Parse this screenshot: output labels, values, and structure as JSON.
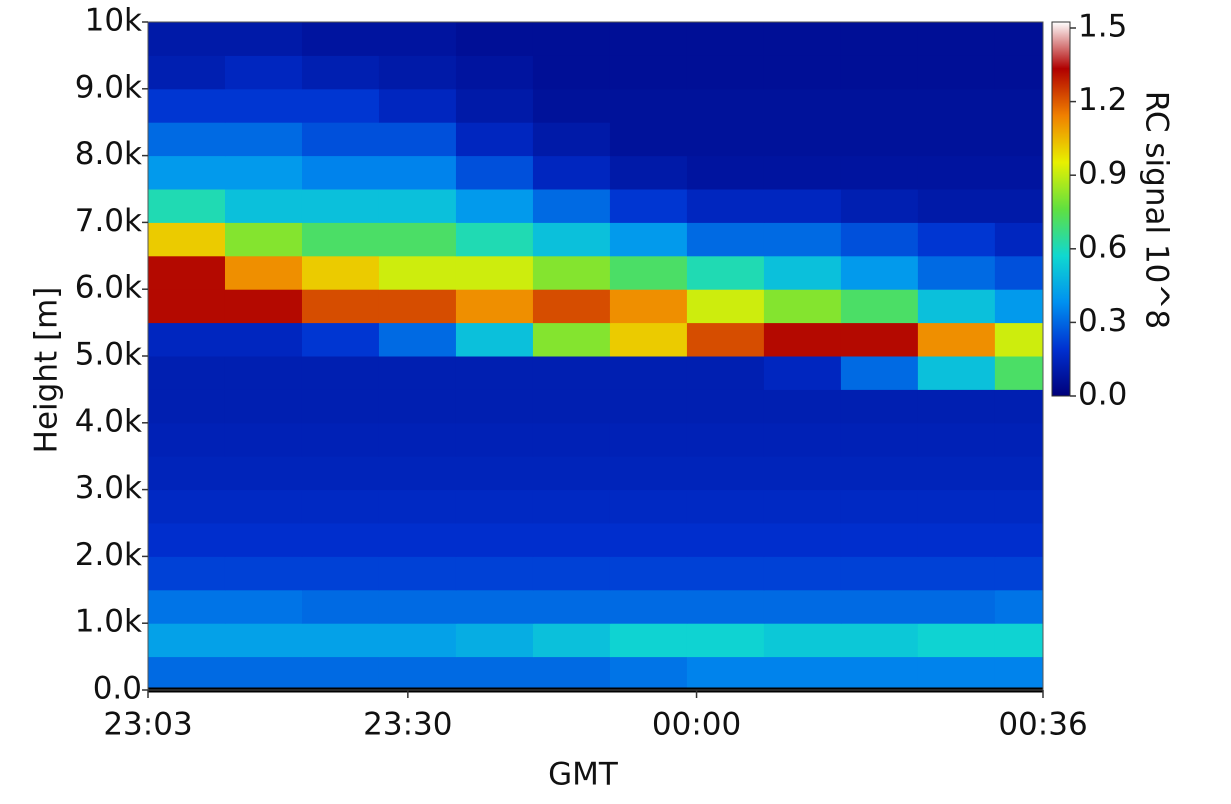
{
  "chart_data": {
    "type": "heatmap",
    "xlabel": "GMT",
    "ylabel": "Height [m]",
    "colorbar_label": "RC signal 10^8",
    "xlim": [
      1383,
      1476
    ],
    "xticks": [
      {
        "value": 1383,
        "label": "23:03"
      },
      {
        "value": 1410,
        "label": "23:30"
      },
      {
        "value": 1440,
        "label": "00:00"
      },
      {
        "value": 1476,
        "label": "00:36"
      }
    ],
    "ylim": [
      0,
      10000
    ],
    "yticks": [
      {
        "value": 0,
        "label": "0.0"
      },
      {
        "value": 1000,
        "label": "1.0k"
      },
      {
        "value": 2000,
        "label": "2.0k"
      },
      {
        "value": 3000,
        "label": "3.0k"
      },
      {
        "value": 4000,
        "label": "4.0k"
      },
      {
        "value": 5000,
        "label": "5.0k"
      },
      {
        "value": 6000,
        "label": "6.0k"
      },
      {
        "value": 7000,
        "label": "7.0k"
      },
      {
        "value": 8000,
        "label": "8.0k"
      },
      {
        "value": 9000,
        "label": "9.0k"
      },
      {
        "value": 10000,
        "label": "10k"
      }
    ],
    "clim": [
      0,
      1.5
    ],
    "cticks": [
      {
        "value": 0,
        "label": "0.0"
      },
      0.3,
      0.6,
      0.9,
      1.2,
      1.5
    ],
    "colorscale": [
      "#00007a",
      "#0030d0",
      "#0090f0",
      "#10d8d0",
      "#60e040",
      "#e8f000",
      "#f08000",
      "#b00000",
      "#ffffff"
    ],
    "xbins": [
      1383,
      1391,
      1399,
      1407,
      1415,
      1423,
      1431,
      1439,
      1447,
      1455,
      1463,
      1471,
      1476
    ],
    "ybins": [
      0,
      500,
      1000,
      1500,
      2000,
      2500,
      3000,
      3500,
      4000,
      4500,
      5000,
      5500,
      6000,
      6500,
      7000,
      7500,
      8000,
      8500,
      9000,
      9500,
      10000
    ],
    "z": [
      [
        0.3,
        0.3,
        0.3,
        0.3,
        0.3,
        0.3,
        0.32,
        0.35,
        0.35,
        0.35,
        0.35,
        0.35
      ],
      [
        0.42,
        0.42,
        0.42,
        0.42,
        0.45,
        0.5,
        0.55,
        0.55,
        0.52,
        0.52,
        0.55,
        0.55
      ],
      [
        0.32,
        0.32,
        0.3,
        0.3,
        0.3,
        0.3,
        0.3,
        0.3,
        0.3,
        0.3,
        0.3,
        0.32
      ],
      [
        0.22,
        0.22,
        0.22,
        0.22,
        0.22,
        0.22,
        0.22,
        0.22,
        0.22,
        0.22,
        0.22,
        0.22
      ],
      [
        0.18,
        0.18,
        0.18,
        0.18,
        0.18,
        0.18,
        0.18,
        0.18,
        0.18,
        0.18,
        0.18,
        0.18
      ],
      [
        0.16,
        0.16,
        0.16,
        0.16,
        0.16,
        0.16,
        0.16,
        0.16,
        0.16,
        0.16,
        0.16,
        0.16
      ],
      [
        0.14,
        0.14,
        0.14,
        0.14,
        0.14,
        0.14,
        0.14,
        0.14,
        0.14,
        0.14,
        0.14,
        0.14
      ],
      [
        0.13,
        0.13,
        0.13,
        0.13,
        0.13,
        0.13,
        0.13,
        0.13,
        0.13,
        0.13,
        0.13,
        0.13
      ],
      [
        0.12,
        0.12,
        0.12,
        0.12,
        0.12,
        0.12,
        0.12,
        0.12,
        0.12,
        0.12,
        0.12,
        0.12
      ],
      [
        0.12,
        0.12,
        0.12,
        0.12,
        0.12,
        0.12,
        0.12,
        0.12,
        0.15,
        0.3,
        0.5,
        0.7
      ],
      [
        0.15,
        0.15,
        0.2,
        0.3,
        0.5,
        0.8,
        1.0,
        1.2,
        1.3,
        1.3,
        1.1,
        0.9
      ],
      [
        1.3,
        1.3,
        1.2,
        1.2,
        1.1,
        1.2,
        1.1,
        0.9,
        0.8,
        0.7,
        0.5,
        0.4
      ],
      [
        1.3,
        1.1,
        1.0,
        0.9,
        0.9,
        0.8,
        0.7,
        0.6,
        0.5,
        0.4,
        0.3,
        0.25
      ],
      [
        1.0,
        0.8,
        0.7,
        0.7,
        0.6,
        0.5,
        0.4,
        0.3,
        0.3,
        0.25,
        0.2,
        0.15
      ],
      [
        0.6,
        0.5,
        0.5,
        0.5,
        0.4,
        0.3,
        0.2,
        0.15,
        0.15,
        0.12,
        0.1,
        0.1
      ],
      [
        0.4,
        0.4,
        0.35,
        0.35,
        0.25,
        0.15,
        0.1,
        0.08,
        0.08,
        0.08,
        0.08,
        0.08
      ],
      [
        0.3,
        0.3,
        0.25,
        0.25,
        0.15,
        0.1,
        0.07,
        0.07,
        0.07,
        0.07,
        0.07,
        0.07
      ],
      [
        0.2,
        0.2,
        0.2,
        0.15,
        0.1,
        0.07,
        0.07,
        0.07,
        0.07,
        0.07,
        0.07,
        0.07
      ],
      [
        0.12,
        0.15,
        0.12,
        0.1,
        0.08,
        0.06,
        0.06,
        0.06,
        0.06,
        0.06,
        0.06,
        0.06
      ],
      [
        0.1,
        0.1,
        0.08,
        0.08,
        0.06,
        0.06,
        0.06,
        0.06,
        0.06,
        0.06,
        0.06,
        0.06
      ]
    ]
  }
}
